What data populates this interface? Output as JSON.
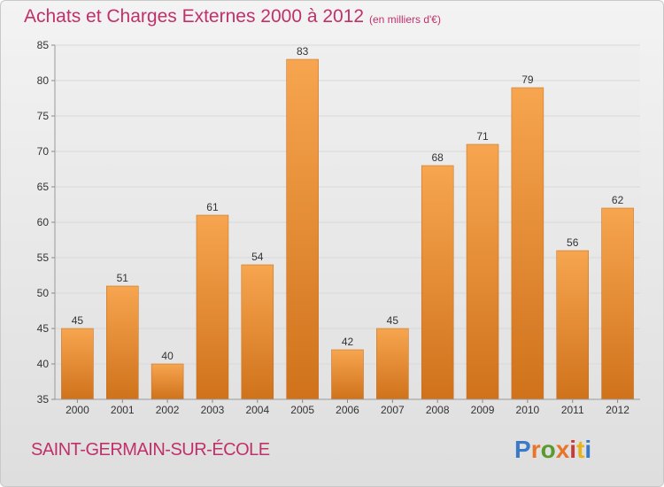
{
  "header": {
    "title": "Achats et Charges Externes 2000 à 2012",
    "subtitle": "(en milliers d'€)"
  },
  "footer": {
    "commune": "SAINT-GERMAIN-SUR-ÉCOLE",
    "logo_text": "Proxiti"
  },
  "colors": {
    "title": "#c0306a",
    "bar_light": "#f7a54f",
    "bar_dark": "#d0721c",
    "grid": "#d8d8d8",
    "logo_letters": [
      "#3a78c8",
      "#e8752a",
      "#5a9a2e",
      "#e8752a",
      "#c93a3a",
      "#e8b21c",
      "#3a78c8"
    ]
  },
  "chart_data": {
    "type": "bar",
    "title": "Achats et Charges Externes 2000 à 2012",
    "subtitle": "(en milliers d'€)",
    "categories": [
      "2000",
      "2001",
      "2002",
      "2003",
      "2004",
      "2005",
      "2006",
      "2007",
      "2008",
      "2009",
      "2010",
      "2011",
      "2012"
    ],
    "values": [
      45,
      51,
      40,
      61,
      54,
      83,
      42,
      45,
      68,
      71,
      79,
      56,
      62
    ],
    "ylim": [
      35,
      85
    ],
    "yticks": [
      "35",
      "40",
      "45",
      "50",
      "55",
      "60",
      "65",
      "70",
      "75",
      "80",
      "85"
    ],
    "xlabel": "",
    "ylabel": "",
    "grid": true,
    "legend": "none"
  }
}
